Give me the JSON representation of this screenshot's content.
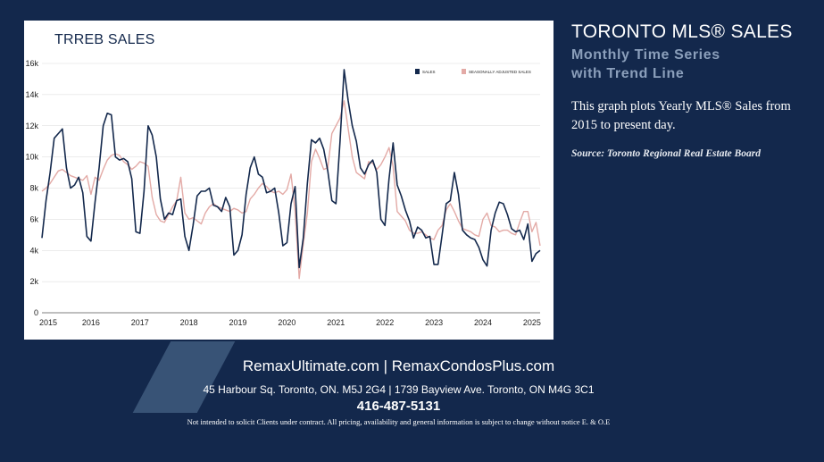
{
  "chart_title": "TRREB SALES",
  "side": {
    "title": "TORONTO MLS® SALES",
    "subtitle_line1": "Monthly Time Series",
    "subtitle_line2": "with Trend Line",
    "description": "This graph plots Yearly MLS® Sales from 2015 to present day.",
    "source": "Source: Toronto Regional Real Estate Board"
  },
  "footer": {
    "websites": "RemaxUltimate.com | RemaxCondosPlus.com",
    "addresses": "45 Harbour Sq. Toronto, ON. M5J 2G4 | 1739 Bayview Ave. Toronto, ON M4G 3C1",
    "phone": "416-487-5131",
    "disclaimer": "Not intended to solicit Clients under contract. All pricing, availability and general information is subject to change without notice E. & O.E"
  },
  "colors": {
    "background": "#13284c",
    "sales_line": "#13284c",
    "sa_line": "#e3aaa6",
    "panel": "#ffffff",
    "subtitle": "#8b9fbb"
  },
  "chart_data": {
    "type": "line",
    "title": "TRREB SALES",
    "xlabel": "",
    "ylabel": "",
    "x_start": "2015-01",
    "x_tick_labels": [
      "2015",
      "2016",
      "2017",
      "2018",
      "2019",
      "2020",
      "2021",
      "2022",
      "2023",
      "2024",
      "2025"
    ],
    "y_ticks": [
      0,
      2000,
      4000,
      6000,
      8000,
      10000,
      12000,
      14000,
      16000
    ],
    "y_tick_labels": [
      "0",
      "2k",
      "4k",
      "6k",
      "8k",
      "10k",
      "12k",
      "14k",
      "16k"
    ],
    "ylim": [
      0,
      16000
    ],
    "grid": "horizontal",
    "legend": "top-right",
    "series": [
      {
        "name": "SALES",
        "values": [
          4800,
          7200,
          9000,
          11200,
          11500,
          11800,
          9300,
          8000,
          8200,
          8700,
          7700,
          4900,
          4600,
          7100,
          9300,
          12000,
          12800,
          12700,
          10000,
          9800,
          9900,
          9700,
          8600,
          5200,
          5100,
          7800,
          12000,
          11400,
          10000,
          7300,
          6000,
          6400,
          6300,
          7200,
          7300,
          4900,
          4000,
          5600,
          7500,
          7800,
          7800,
          8000,
          6900,
          6800,
          6500,
          7400,
          6800,
          3700,
          4000,
          5000,
          7600,
          9300,
          10000,
          8900,
          8700,
          7700,
          7800,
          8000,
          6400,
          4300,
          4500,
          7000,
          8100,
          2900,
          4800,
          8300,
          11100,
          10900,
          11200,
          10500,
          9100,
          7200,
          7000,
          11000,
          15600,
          13600,
          12000,
          11000,
          9300,
          8900,
          9500,
          9800,
          9000,
          6000,
          5600,
          8600,
          10900,
          8200,
          7500,
          6600,
          5900,
          4800,
          5500,
          5300,
          4800,
          4900,
          3100,
          3100,
          5000,
          7000,
          7200,
          9000,
          7600,
          5300,
          5000,
          4800,
          4700,
          4200,
          3400,
          3000,
          5300,
          6400,
          7100,
          7000,
          6300,
          5400,
          5200,
          5300,
          4700,
          5700,
          3300,
          3800,
          4000
        ]
      },
      {
        "name": "SEASONALLY ADJUSTED SALES",
        "values": [
          7800,
          8000,
          8300,
          8700,
          9100,
          9200,
          9000,
          8800,
          8700,
          8600,
          8500,
          8800,
          7600,
          8700,
          8500,
          9200,
          9800,
          10100,
          10200,
          10100,
          9700,
          9500,
          9200,
          9400,
          9700,
          9600,
          9400,
          7400,
          6300,
          5900,
          5800,
          6300,
          6800,
          7200,
          8700,
          6400,
          6000,
          6100,
          5900,
          5700,
          6400,
          6800,
          7000,
          6800,
          6700,
          6600,
          6500,
          6700,
          6600,
          6400,
          6500,
          7300,
          7600,
          8000,
          8300,
          8100,
          7800,
          7700,
          7800,
          7600,
          7900,
          8900,
          6500,
          2200,
          4400,
          6400,
          9700,
          10500,
          9900,
          9200,
          9300,
          11500,
          12000,
          12500,
          13600,
          11800,
          10000,
          9000,
          8800,
          8600,
          9700,
          9600,
          9200,
          9500,
          10000,
          10600,
          9400,
          6500,
          6200,
          5900,
          5300,
          5100,
          5100,
          5200,
          5000,
          4800,
          4700,
          5300,
          5600,
          6600,
          7000,
          6500,
          5900,
          5400,
          5300,
          5200,
          5000,
          4900,
          6000,
          6400,
          5600,
          5500,
          5200,
          5300,
          5300,
          5100,
          5000,
          5800,
          6500,
          6500,
          5200,
          5800,
          4300
        ]
      }
    ]
  }
}
